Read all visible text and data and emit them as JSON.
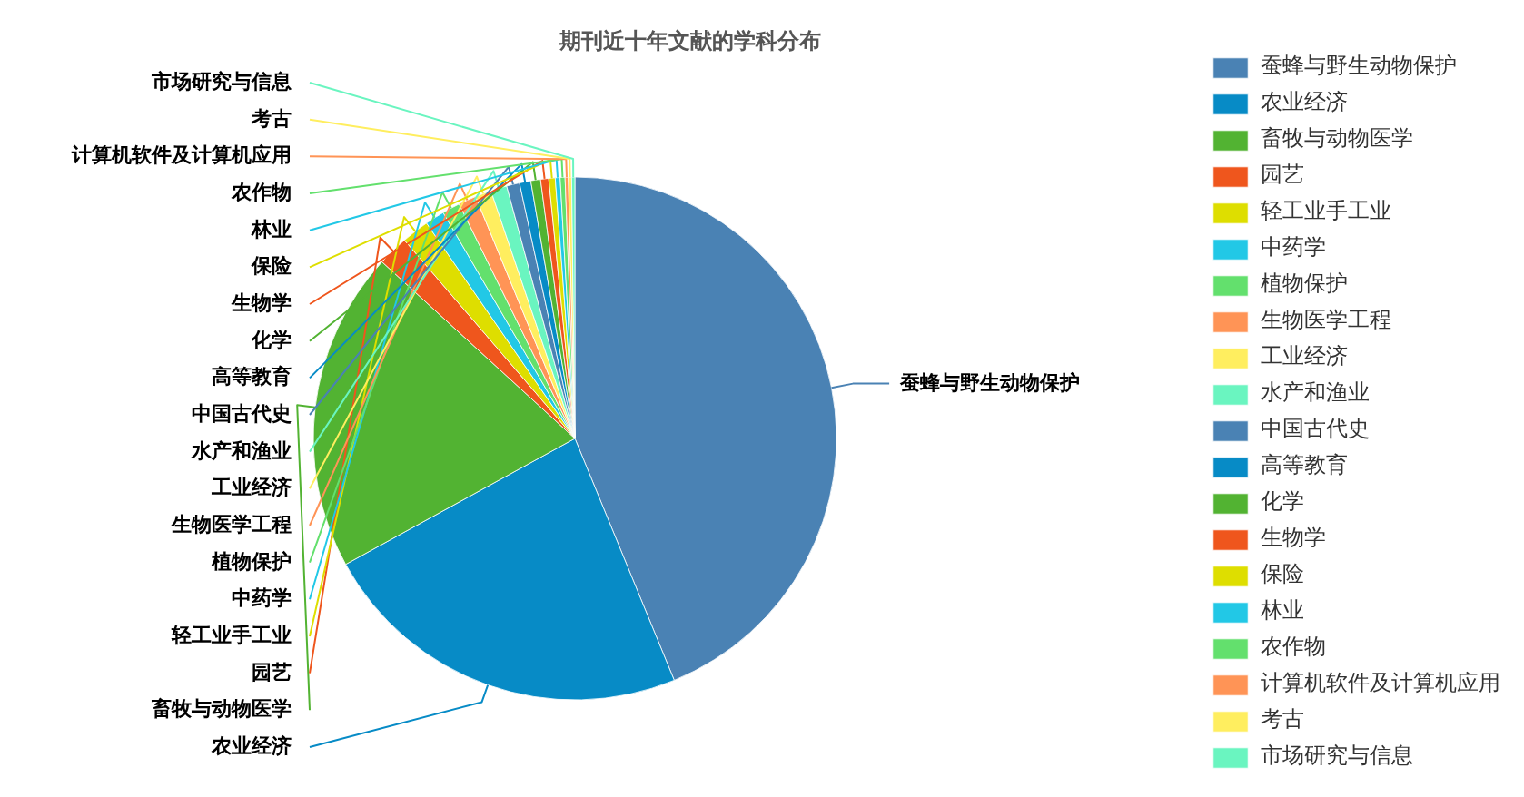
{
  "chart_data": {
    "type": "pie",
    "title": "期刊近十年文献的学科分布",
    "categories": [
      "蚕蜂与野生动物保护",
      "农业经济",
      "畜牧与动物医学",
      "园艺",
      "轻工业手工业",
      "中药学",
      "植物保护",
      "生物医学工程",
      "工业经济",
      "水产和渔业",
      "中国古代史",
      "高等教育",
      "化学",
      "生物学",
      "保险",
      "林业",
      "农作物",
      "计算机软件及计算机应用",
      "考古",
      "市场研究与信息"
    ],
    "values": [
      43.8,
      23.2,
      19.8,
      1.9,
      1.7,
      1.2,
      1.1,
      1.1,
      1.0,
      1.0,
      0.8,
      0.7,
      0.6,
      0.5,
      0.4,
      0.3,
      0.3,
      0.2,
      0.2,
      0.2
    ],
    "colors": [
      "#4a82b4",
      "#078bc6",
      "#52b332",
      "#ef561d",
      "#dede00",
      "#22c8e6",
      "#63e06d",
      "#ff9456",
      "#ffee5f",
      "#6af5c0",
      "#4a82b4",
      "#078bc6",
      "#52b332",
      "#ef561d",
      "#dede00",
      "#22c8e6",
      "#63e06d",
      "#ff9456",
      "#ffee5f",
      "#6af5c0"
    ],
    "legend": "right"
  }
}
